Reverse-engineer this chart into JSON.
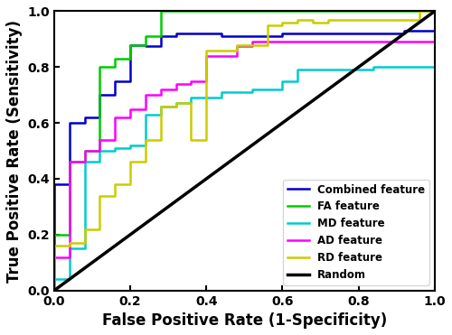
{
  "xlabel": "False Positive Rate (1-Specificity)",
  "ylabel": "True Positive Rate (Sensitivity)",
  "xlim": [
    0.0,
    1.0
  ],
  "ylim": [
    0.0,
    1.0
  ],
  "random_line": {
    "x": [
      0,
      1
    ],
    "y": [
      0,
      1
    ],
    "color": "#000000",
    "lw": 2.5,
    "label": "Random"
  },
  "curves": [
    {
      "label": "Combined feature",
      "color": "#0000CC",
      "lw": 1.8,
      "fpr": [
        0.0,
        0.0,
        0.04,
        0.04,
        0.08,
        0.08,
        0.12,
        0.12,
        0.16,
        0.16,
        0.2,
        0.2,
        0.24,
        0.24,
        0.28,
        0.28,
        0.32,
        0.32,
        0.44,
        0.44,
        0.6,
        0.6,
        0.92,
        0.92,
        1.0
      ],
      "tpr": [
        0.0,
        0.38,
        0.38,
        0.6,
        0.6,
        0.62,
        0.62,
        0.7,
        0.7,
        0.75,
        0.75,
        0.88,
        0.88,
        0.875,
        0.875,
        0.91,
        0.91,
        0.92,
        0.92,
        0.91,
        0.91,
        0.92,
        0.92,
        0.93,
        0.93
      ]
    },
    {
      "label": "FA feature",
      "color": "#00CC00",
      "lw": 1.8,
      "fpr": [
        0.0,
        0.0,
        0.04,
        0.04,
        0.08,
        0.08,
        0.12,
        0.12,
        0.16,
        0.16,
        0.2,
        0.2,
        0.24,
        0.24,
        0.28,
        0.28,
        1.0
      ],
      "tpr": [
        0.0,
        0.2,
        0.2,
        0.46,
        0.46,
        0.5,
        0.5,
        0.8,
        0.8,
        0.83,
        0.83,
        0.88,
        0.88,
        0.91,
        0.91,
        1.0,
        1.0
      ]
    },
    {
      "label": "MD feature",
      "color": "#00CCCC",
      "lw": 1.8,
      "fpr": [
        0.0,
        0.0,
        0.04,
        0.04,
        0.08,
        0.08,
        0.12,
        0.12,
        0.16,
        0.16,
        0.2,
        0.2,
        0.24,
        0.24,
        0.28,
        0.28,
        0.32,
        0.32,
        0.36,
        0.36,
        0.44,
        0.44,
        0.52,
        0.52,
        0.6,
        0.6,
        0.64,
        0.64,
        0.68,
        0.68,
        0.72,
        0.72,
        0.76,
        0.76,
        0.84,
        0.84,
        1.0
      ],
      "tpr": [
        0.0,
        0.04,
        0.04,
        0.15,
        0.15,
        0.46,
        0.46,
        0.5,
        0.5,
        0.51,
        0.51,
        0.52,
        0.52,
        0.63,
        0.63,
        0.66,
        0.66,
        0.67,
        0.67,
        0.69,
        0.69,
        0.71,
        0.71,
        0.72,
        0.72,
        0.75,
        0.75,
        0.79,
        0.79,
        0.79,
        0.79,
        0.79,
        0.79,
        0.79,
        0.79,
        0.8,
        0.8
      ]
    },
    {
      "label": "AD feature",
      "color": "#FF00FF",
      "lw": 1.8,
      "fpr": [
        0.0,
        0.0,
        0.04,
        0.04,
        0.08,
        0.08,
        0.12,
        0.12,
        0.16,
        0.16,
        0.2,
        0.2,
        0.24,
        0.24,
        0.28,
        0.28,
        0.32,
        0.32,
        0.36,
        0.36,
        0.4,
        0.4,
        0.44,
        0.44,
        0.48,
        0.48,
        0.52,
        0.52,
        0.6,
        0.6,
        1.0
      ],
      "tpr": [
        0.0,
        0.12,
        0.12,
        0.46,
        0.46,
        0.5,
        0.5,
        0.54,
        0.54,
        0.62,
        0.62,
        0.65,
        0.65,
        0.7,
        0.7,
        0.72,
        0.72,
        0.74,
        0.74,
        0.75,
        0.75,
        0.84,
        0.84,
        0.84,
        0.84,
        0.875,
        0.875,
        0.89,
        0.89,
        0.89,
        0.89
      ]
    },
    {
      "label": "RD feature",
      "color": "#CCCC00",
      "lw": 1.8,
      "fpr": [
        0.0,
        0.0,
        0.04,
        0.04,
        0.08,
        0.08,
        0.12,
        0.12,
        0.16,
        0.16,
        0.2,
        0.2,
        0.24,
        0.24,
        0.28,
        0.28,
        0.32,
        0.32,
        0.36,
        0.36,
        0.4,
        0.4,
        0.44,
        0.44,
        0.48,
        0.48,
        0.52,
        0.52,
        0.56,
        0.56,
        0.6,
        0.6,
        0.64,
        0.64,
        0.68,
        0.68,
        0.72,
        0.72,
        0.96,
        0.96,
        1.0
      ],
      "tpr": [
        0.0,
        0.16,
        0.16,
        0.17,
        0.17,
        0.22,
        0.22,
        0.34,
        0.34,
        0.38,
        0.38,
        0.46,
        0.46,
        0.54,
        0.54,
        0.66,
        0.66,
        0.67,
        0.67,
        0.54,
        0.54,
        0.86,
        0.86,
        0.86,
        0.86,
        0.88,
        0.88,
        0.88,
        0.88,
        0.95,
        0.95,
        0.96,
        0.96,
        0.97,
        0.97,
        0.96,
        0.96,
        0.97,
        0.97,
        1.0,
        1.0
      ]
    }
  ],
  "legend": {
    "loc": "lower right",
    "fontsize": 8.5,
    "frameon": true
  },
  "tick_fontsize": 10,
  "label_fontsize": 12,
  "xticks": [
    0.0,
    0.2,
    0.4,
    0.6,
    0.8,
    1.0
  ],
  "yticks": [
    0.0,
    0.2,
    0.4,
    0.6,
    0.8,
    1.0
  ]
}
